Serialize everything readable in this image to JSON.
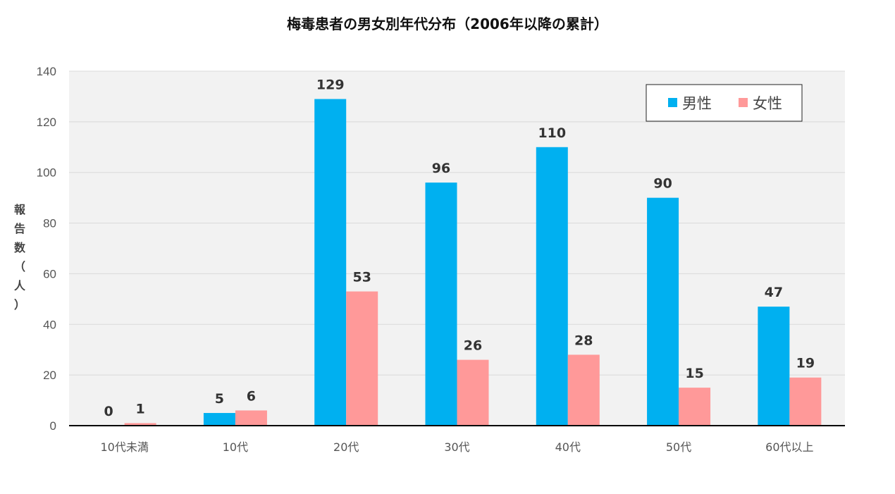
{
  "chart_data": {
    "type": "bar",
    "title": "梅毒患者の男女別年代分布（2006年以降の累計）",
    "xlabel": "",
    "ylabel": "報告数（人）",
    "categories": [
      "10代未満",
      "10代",
      "20代",
      "30代",
      "40代",
      "50代",
      "60代以上"
    ],
    "series": [
      {
        "name": "男性",
        "color": "#00b0f0",
        "values": [
          0,
          5,
          129,
          96,
          110,
          90,
          47
        ]
      },
      {
        "name": "女性",
        "color": "#ff9999",
        "values": [
          1,
          6,
          53,
          26,
          28,
          15,
          19
        ]
      }
    ],
    "ylim": [
      0,
      140
    ],
    "yticks": [
      0,
      20,
      40,
      60,
      80,
      100,
      120,
      140
    ],
    "grid": true,
    "legend": "top-right",
    "plot_background": "#f2f2f2"
  }
}
